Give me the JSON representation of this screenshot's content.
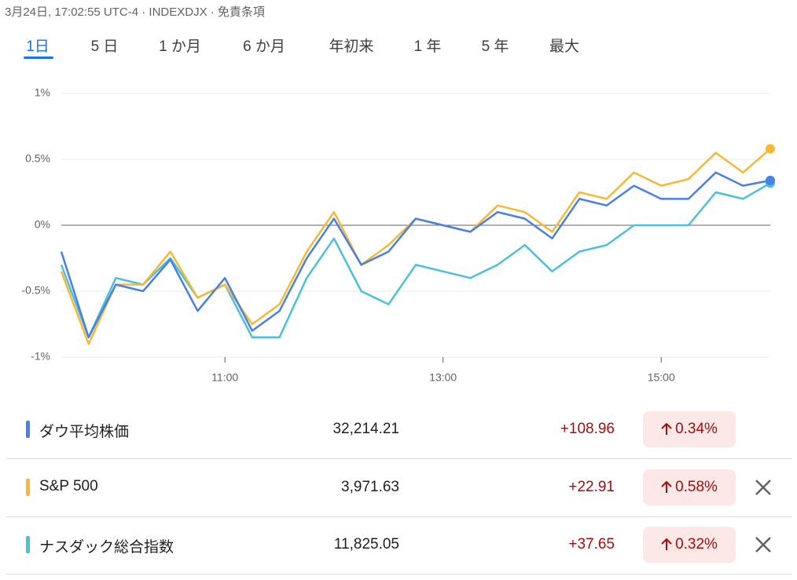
{
  "header": {
    "title": "3月24日, 17:02:55 UTC-4 · INDEXDJX · 免責条項"
  },
  "tabs": [
    "1日",
    "5 日",
    "1 か月",
    "6 か月",
    "年初来",
    "1 年",
    "5 年",
    "最大"
  ],
  "chart_data": {
    "type": "line",
    "x": [
      9.5,
      9.75,
      10,
      10.25,
      10.5,
      10.75,
      11,
      11.25,
      11.5,
      11.75,
      12,
      12.25,
      12.5,
      12.75,
      13,
      13.25,
      13.5,
      13.75,
      14,
      14.25,
      14.5,
      14.75,
      15,
      15.25,
      15.5,
      15.75,
      16
    ],
    "xlim": [
      9.5,
      16
    ],
    "xticks": [
      {
        "value": 11,
        "label": "11:00"
      },
      {
        "value": 13,
        "label": "13:00"
      },
      {
        "value": 15,
        "label": "15:00"
      }
    ],
    "ylim": [
      -1,
      1
    ],
    "yticks": [
      {
        "value": 1,
        "label": "1%"
      },
      {
        "value": 0.5,
        "label": "0.5%"
      },
      {
        "value": 0,
        "label": "0%"
      },
      {
        "value": -0.5,
        "label": "-0.5%"
      },
      {
        "value": -1,
        "label": "-1%"
      }
    ],
    "grid": true,
    "series": [
      {
        "name": "ダウ平均株価",
        "color": "#4a7fe3",
        "values": [
          -0.2,
          -0.85,
          -0.45,
          -0.5,
          -0.26,
          -0.65,
          -0.4,
          -0.8,
          -0.65,
          -0.25,
          0.05,
          -0.3,
          -0.2,
          0.05,
          0.0,
          -0.05,
          0.1,
          0.05,
          -0.1,
          0.2,
          0.15,
          0.3,
          0.2,
          0.2,
          0.4,
          0.3,
          0.34
        ]
      },
      {
        "name": "S&P 500",
        "color": "#f5b935",
        "values": [
          -0.35,
          -0.9,
          -0.45,
          -0.45,
          -0.2,
          -0.55,
          -0.45,
          -0.75,
          -0.6,
          -0.2,
          0.1,
          -0.3,
          -0.15,
          0.05,
          0.0,
          -0.05,
          0.15,
          0.1,
          -0.05,
          0.25,
          0.2,
          0.4,
          0.3,
          0.35,
          0.55,
          0.4,
          0.58
        ]
      },
      {
        "name": "ナスダック総合指数",
        "color": "#4cc0d8",
        "values": [
          -0.3,
          -0.85,
          -0.4,
          -0.45,
          -0.25,
          -0.55,
          -0.45,
          -0.85,
          -0.85,
          -0.4,
          -0.1,
          -0.5,
          -0.6,
          -0.3,
          -0.35,
          -0.4,
          -0.3,
          -0.15,
          -0.35,
          -0.2,
          -0.15,
          0.0,
          0.0,
          0.0,
          0.25,
          0.2,
          0.32
        ]
      }
    ]
  },
  "table": {
    "rows": [
      [
        "32,214.21",
        "+108.96",
        "0.34%"
      ],
      [
        "3,971.63",
        "+22.91",
        "0.58%"
      ],
      [
        "11,825.05",
        "+37.65",
        "0.32%"
      ]
    ]
  }
}
